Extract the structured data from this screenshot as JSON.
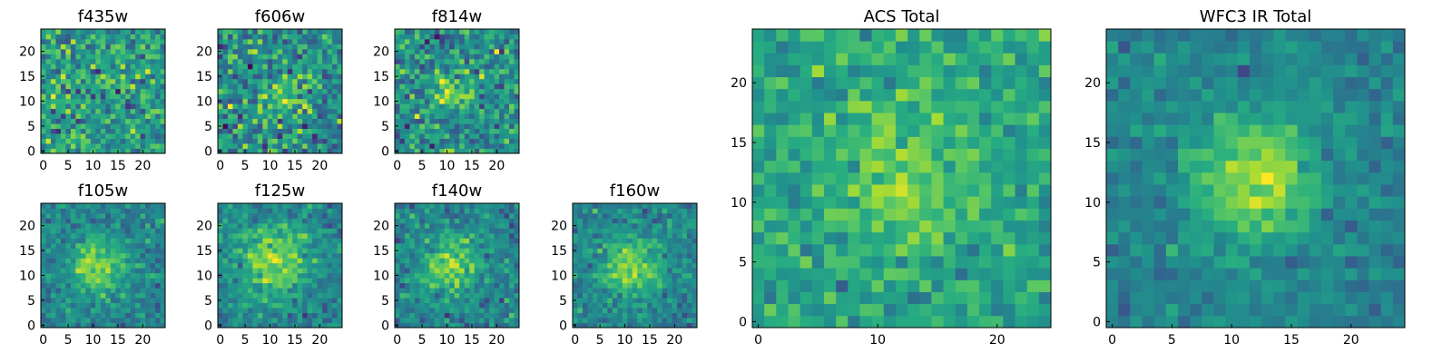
{
  "figure": {
    "colormap": "viridis",
    "image_size": [
      25,
      25
    ]
  },
  "chart_data": [
    {
      "type": "heatmap",
      "title": "f435w",
      "xticks": [
        0,
        5,
        10,
        15,
        20
      ],
      "yticks": [
        0,
        5,
        10,
        15,
        20
      ],
      "xlim": [
        0,
        24
      ],
      "ylim": [
        0,
        24
      ],
      "peak": [
        10,
        8
      ],
      "peak_amp": 0.08,
      "peak_sigma": 3,
      "noise": 0.28,
      "base": 0.55
    },
    {
      "type": "heatmap",
      "title": "f606w",
      "xticks": [
        0,
        5,
        10,
        15,
        20
      ],
      "yticks": [
        0,
        5,
        10,
        15,
        20
      ],
      "xlim": [
        0,
        24
      ],
      "ylim": [
        0,
        24
      ],
      "peak": [
        12,
        11
      ],
      "peak_amp": 0.2,
      "peak_sigma": 3,
      "noise": 0.3,
      "base": 0.5
    },
    {
      "type": "heatmap",
      "title": "f814w",
      "xticks": [
        0,
        5,
        10,
        15,
        20
      ],
      "yticks": [
        0,
        5,
        10,
        15,
        20
      ],
      "xlim": [
        0,
        24
      ],
      "ylim": [
        0,
        24
      ],
      "peak": [
        11,
        12
      ],
      "peak_amp": 0.25,
      "peak_sigma": 3,
      "noise": 0.28,
      "base": 0.5
    },
    {
      "type": "heatmap",
      "title": "f105w",
      "xticks": [
        0,
        5,
        10,
        15,
        20
      ],
      "yticks": [
        0,
        5,
        10,
        15,
        20
      ],
      "xlim": [
        0,
        24
      ],
      "ylim": [
        0,
        24
      ],
      "peak": [
        11,
        12
      ],
      "peak_amp": 0.35,
      "peak_sigma": 4,
      "noise": 0.16,
      "base": 0.45
    },
    {
      "type": "heatmap",
      "title": "f125w",
      "xticks": [
        0,
        5,
        10,
        15,
        20
      ],
      "yticks": [
        0,
        5,
        10,
        15,
        20
      ],
      "xlim": [
        0,
        24
      ],
      "ylim": [
        0,
        24
      ],
      "peak": [
        11,
        13
      ],
      "peak_amp": 0.38,
      "peak_sigma": 5,
      "noise": 0.17,
      "base": 0.45
    },
    {
      "type": "heatmap",
      "title": "f140w",
      "xticks": [
        0,
        5,
        10,
        15,
        20
      ],
      "yticks": [
        0,
        5,
        10,
        15,
        20
      ],
      "xlim": [
        0,
        24
      ],
      "ylim": [
        0,
        24
      ],
      "peak": [
        11,
        12
      ],
      "peak_amp": 0.38,
      "peak_sigma": 4,
      "noise": 0.18,
      "base": 0.45
    },
    {
      "type": "heatmap",
      "title": "f160w",
      "xticks": [
        0,
        5,
        10,
        15,
        20
      ],
      "yticks": [
        0,
        5,
        10,
        15,
        20
      ],
      "xlim": [
        0,
        24
      ],
      "ylim": [
        0,
        24
      ],
      "peak": [
        11,
        12
      ],
      "peak_amp": 0.4,
      "peak_sigma": 4,
      "noise": 0.16,
      "base": 0.45
    },
    {
      "type": "heatmap",
      "title": "ACS Total",
      "xticks": [
        0,
        10,
        20
      ],
      "yticks": [
        0,
        5,
        10,
        15,
        20
      ],
      "xlim": [
        0,
        24
      ],
      "ylim": [
        0,
        24
      ],
      "peak": [
        12,
        12
      ],
      "peak_amp": 0.22,
      "peak_sigma": 3.5,
      "noise": 0.17,
      "base": 0.6
    },
    {
      "type": "heatmap",
      "title": "WFC3 IR Total",
      "xticks": [
        0,
        5,
        10,
        15,
        20
      ],
      "yticks": [
        0,
        5,
        10,
        15,
        20
      ],
      "xlim": [
        0,
        24
      ],
      "ylim": [
        0,
        24
      ],
      "peak": [
        12,
        12
      ],
      "peak_amp": 0.45,
      "peak_sigma": 3.5,
      "noise": 0.12,
      "base": 0.45
    }
  ]
}
